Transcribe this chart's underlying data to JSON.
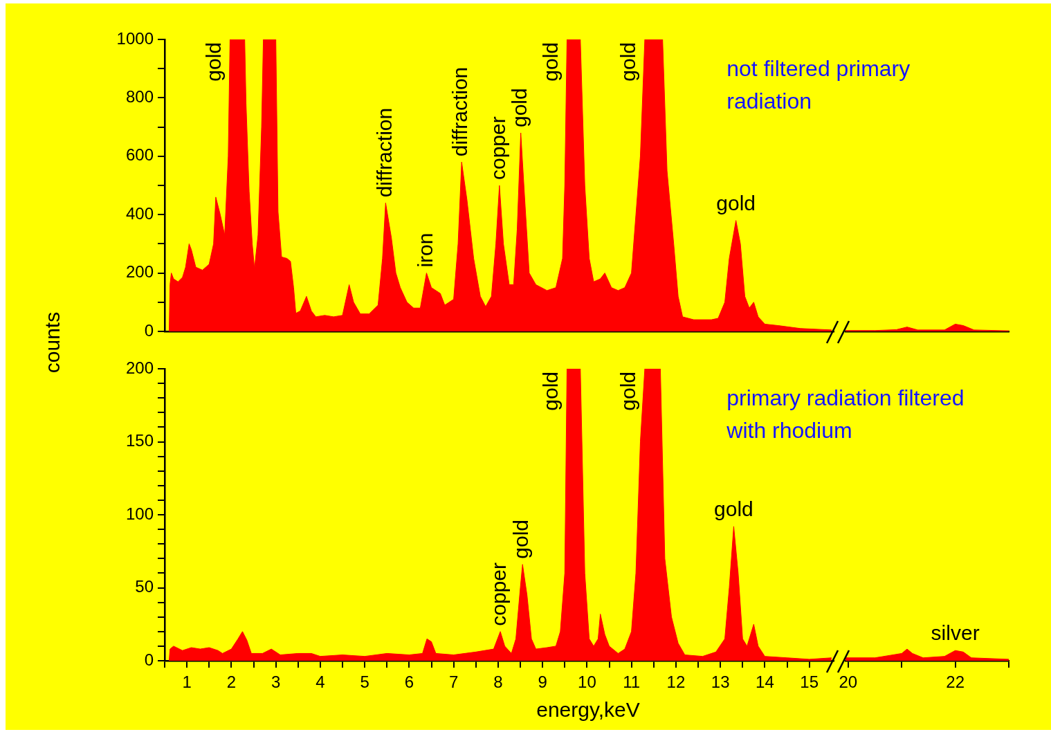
{
  "chart_data": [
    {
      "type": "area",
      "title": "not filtered primary radiation",
      "ylabel": "counts",
      "color": "#ff0000",
      "x": [
        0.6,
        0.62,
        0.65,
        0.7,
        0.8,
        0.9,
        0.97,
        1.05,
        1.1,
        1.2,
        1.35,
        1.5,
        1.6,
        1.65,
        1.75,
        1.85,
        1.93,
        1.97,
        2.3,
        2.33,
        2.4,
        2.47,
        2.52,
        2.6,
        2.68,
        2.72,
        3.0,
        3.05,
        3.13,
        3.25,
        3.33,
        3.4,
        3.45,
        3.55,
        3.69,
        3.8,
        3.9,
        4.1,
        4.3,
        4.5,
        4.65,
        4.75,
        4.9,
        5.1,
        5.3,
        5.4,
        5.47,
        5.6,
        5.7,
        5.8,
        5.95,
        6.1,
        6.25,
        6.39,
        6.5,
        6.7,
        6.8,
        7.0,
        7.1,
        7.18,
        7.3,
        7.45,
        7.6,
        7.72,
        7.85,
        7.95,
        8.03,
        8.12,
        8.25,
        8.35,
        8.43,
        8.51,
        8.6,
        8.7,
        8.85,
        9.1,
        9.3,
        9.45,
        9.5,
        9.55,
        9.85,
        9.95,
        10.05,
        10.15,
        10.3,
        10.4,
        10.55,
        10.7,
        10.85,
        11.0,
        11.1,
        11.2,
        11.3,
        11.7,
        11.8,
        11.95,
        12.05,
        12.15,
        12.4,
        12.8,
        12.95,
        13.1,
        13.2,
        13.35,
        13.45,
        13.55,
        13.65,
        13.75,
        13.85,
        14.0,
        14.3,
        14.8,
        15.5
      ],
      "values": [
        0,
        160,
        200,
        180,
        170,
        185,
        220,
        300,
        280,
        220,
        210,
        230,
        300,
        460,
        400,
        330,
        600,
        1000,
        1000,
        780,
        480,
        300,
        215,
        330,
        700,
        1000,
        1000,
        410,
        255,
        250,
        240,
        150,
        62,
        70,
        120,
        70,
        50,
        55,
        50,
        55,
        160,
        100,
        60,
        60,
        90,
        250,
        440,
        320,
        200,
        150,
        100,
        80,
        80,
        200,
        150,
        130,
        90,
        110,
        300,
        580,
        450,
        250,
        120,
        85,
        120,
        300,
        500,
        300,
        160,
        160,
        350,
        680,
        450,
        200,
        160,
        140,
        150,
        250,
        500,
        1000,
        1000,
        500,
        250,
        170,
        180,
        200,
        150,
        140,
        150,
        200,
        400,
        600,
        1000,
        1000,
        550,
        300,
        120,
        50,
        40,
        40,
        45,
        100,
        250,
        380,
        300,
        120,
        80,
        100,
        50,
        25,
        20,
        10,
        5
      ],
      "xlim": [
        0.5,
        15.55
      ],
      "ylim": [
        0,
        1000
      ],
      "yticks": [
        0,
        {
          "value": 100,
          "label": null
        },
        200,
        {
          "value": 300,
          "label": null
        },
        400,
        {
          "value": 500,
          "label": null
        },
        600,
        {
          "value": 700,
          "label": null
        },
        800,
        {
          "value": 900,
          "label": null
        },
        1000
      ],
      "grid": false,
      "tick_labels": "y",
      "annotations": [
        {
          "text": "gold",
          "x": 1.97,
          "y": 1000
        },
        {
          "text": "diffraction",
          "x": 5.47,
          "y": 440
        },
        {
          "text": "iron",
          "x": 6.39,
          "y": 200
        },
        {
          "text": "diffraction",
          "x": 7.18,
          "y": 580
        },
        {
          "text": "copper",
          "x": 8.03,
          "y": 500
        },
        {
          "text": "gold",
          "x": 8.51,
          "y": 680
        },
        {
          "text": "gold",
          "x": 9.55,
          "y": 1000
        },
        {
          "text": "gold",
          "x": 11.3,
          "y": 1000
        },
        {
          "text": "gold",
          "x": 13.35,
          "y": 380
        }
      ]
    },
    {
      "type": "area",
      "color": "#ff0000",
      "x": [
        19.95,
        20.5,
        20.9,
        21.1,
        21.3,
        21.8,
        22.0,
        22.15,
        22.35,
        23.0
      ],
      "values": [
        3,
        3,
        6,
        15,
        5,
        5,
        25,
        20,
        5,
        2
      ],
      "xlim": [
        19.95,
        23
      ],
      "ylim": [
        0,
        1000
      ],
      "grid": false,
      "tick_labels": false
    },
    {
      "type": "area",
      "title": "primary radiation filtered with rhodium",
      "xlabel": "energy,keV",
      "color": "#ff0000",
      "x": [
        0.6,
        0.62,
        0.7,
        0.9,
        1.1,
        1.3,
        1.5,
        1.7,
        1.8,
        2.0,
        2.15,
        2.25,
        2.35,
        2.45,
        2.7,
        2.9,
        3.1,
        3.5,
        3.8,
        4.0,
        4.5,
        5.0,
        5.5,
        6.0,
        6.3,
        6.4,
        6.5,
        6.6,
        7.0,
        7.5,
        7.9,
        8.05,
        8.15,
        8.3,
        8.4,
        8.5,
        8.55,
        8.65,
        8.75,
        8.85,
        9.1,
        9.3,
        9.4,
        9.5,
        9.55,
        9.85,
        9.95,
        10.05,
        10.15,
        10.25,
        10.3,
        10.4,
        10.5,
        10.7,
        10.85,
        11.0,
        11.1,
        11.2,
        11.3,
        11.65,
        11.75,
        11.9,
        12.05,
        12.2,
        12.6,
        12.9,
        13.1,
        13.2,
        13.3,
        13.4,
        13.5,
        13.6,
        13.75,
        13.85,
        14.0,
        14.5,
        15.0,
        15.5
      ],
      "values": [
        0,
        8,
        10,
        7,
        9,
        8,
        9,
        7,
        5,
        8,
        15,
        20,
        14,
        5,
        5,
        8,
        4,
        5,
        5,
        3,
        4,
        3,
        5,
        4,
        5,
        15,
        13,
        5,
        4,
        6,
        8,
        20,
        10,
        5,
        15,
        50,
        66,
        45,
        15,
        8,
        9,
        10,
        20,
        60,
        200,
        200,
        60,
        15,
        10,
        15,
        32,
        18,
        10,
        5,
        8,
        20,
        60,
        150,
        200,
        200,
        70,
        30,
        12,
        4,
        3,
        6,
        15,
        50,
        92,
        60,
        15,
        10,
        25,
        10,
        3,
        2,
        1,
        2
      ],
      "xlim": [
        0.5,
        15.55
      ],
      "ylim": [
        0,
        200
      ],
      "xticks": [
        {
          "value": 0.5,
          "label": null
        },
        1,
        {
          "value": 1.5,
          "label": null
        },
        2,
        {
          "value": 2.5,
          "label": null
        },
        3,
        {
          "value": 3.5,
          "label": null
        },
        4,
        {
          "value": 4.5,
          "label": null
        },
        5,
        {
          "value": 5.5,
          "label": null
        },
        6,
        {
          "value": 6.5,
          "label": null
        },
        7,
        {
          "value": 7.5,
          "label": null
        },
        8,
        {
          "value": 8.5,
          "label": null
        },
        9,
        {
          "value": 9.5,
          "label": null
        },
        10,
        {
          "value": 10.5,
          "label": null
        },
        11,
        {
          "value": 11.5,
          "label": null
        },
        12,
        {
          "value": 12.5,
          "label": null
        },
        13,
        {
          "value": 13.5,
          "label": null
        },
        14,
        {
          "value": 14.5,
          "label": null
        },
        15
      ],
      "yticks": [
        0,
        {
          "value": 10,
          "label": null
        },
        {
          "value": 20,
          "label": null
        },
        {
          "value": 30,
          "label": null
        },
        {
          "value": 40,
          "label": null
        },
        50,
        {
          "value": 60,
          "label": null
        },
        {
          "value": 70,
          "label": null
        },
        {
          "value": 80,
          "label": null
        },
        {
          "value": 90,
          "label": null
        },
        100,
        {
          "value": 110,
          "label": null
        },
        {
          "value": 120,
          "label": null
        },
        {
          "value": 130,
          "label": null
        },
        {
          "value": 140,
          "label": null
        },
        150,
        {
          "value": 160,
          "label": null
        },
        {
          "value": 170,
          "label": null
        },
        {
          "value": 180,
          "label": null
        },
        {
          "value": 190,
          "label": null
        },
        200
      ],
      "grid": false,
      "annotations": [
        {
          "text": "copper",
          "x": 8.05,
          "y": 20
        },
        {
          "text": "gold",
          "x": 8.55,
          "y": 66
        },
        {
          "text": "gold",
          "x": 9.55,
          "y": 200
        },
        {
          "text": "gold",
          "x": 11.3,
          "y": 200
        },
        {
          "text": "gold",
          "x": 13.3,
          "y": 92
        }
      ]
    },
    {
      "type": "area",
      "color": "#ff0000",
      "x": [
        19.95,
        20.5,
        21.0,
        21.1,
        21.2,
        21.4,
        21.8,
        22.0,
        22.15,
        22.3,
        23.0
      ],
      "values": [
        2,
        2,
        5,
        8,
        5,
        2,
        3,
        7,
        6,
        2,
        1
      ],
      "xlim": [
        19.95,
        23
      ],
      "ylim": [
        0,
        200
      ],
      "xticks": [
        20,
        {
          "value": 21,
          "label": null
        },
        22,
        {
          "value": 23,
          "label": null
        }
      ],
      "grid": false,
      "tick_labels": "x",
      "annotations": [
        {
          "text": "silver",
          "x": 22.0,
          "y": 7
        }
      ]
    }
  ]
}
